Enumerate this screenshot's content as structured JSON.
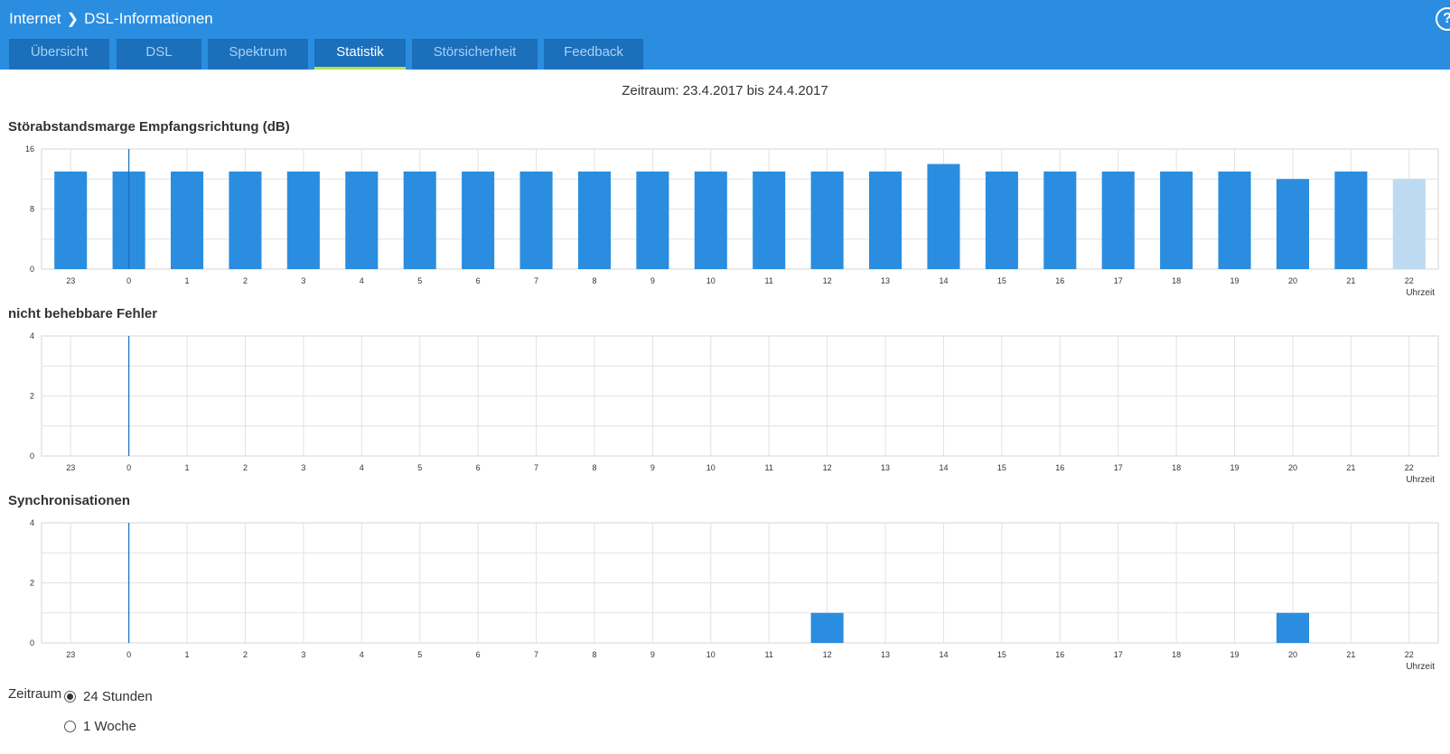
{
  "header": {
    "breadcrumb": [
      "Internet",
      "DSL-Informationen"
    ],
    "help_icon": "?"
  },
  "tabs": [
    {
      "label": "Übersicht"
    },
    {
      "label": "DSL"
    },
    {
      "label": "Spektrum"
    },
    {
      "label": "Statistik",
      "active": true
    },
    {
      "label": "Störsicherheit"
    },
    {
      "label": "Feedback"
    }
  ],
  "period_text": "Zeitraum: 23.4.2017 bis 24.4.2017",
  "chart_data": [
    {
      "type": "bar",
      "title": "Störabstandsmarge Empfangsrichtung (dB)",
      "xlabel": "Uhrzeit",
      "categories": [
        "23",
        "0",
        "1",
        "2",
        "3",
        "4",
        "5",
        "6",
        "7",
        "8",
        "9",
        "10",
        "11",
        "12",
        "13",
        "14",
        "15",
        "16",
        "17",
        "18",
        "19",
        "20",
        "21",
        "22"
      ],
      "values": [
        13,
        13,
        13,
        13,
        13,
        13,
        13,
        13,
        13,
        13,
        13,
        13,
        13,
        13,
        13,
        14,
        13,
        13,
        13,
        13,
        13,
        12,
        13,
        12
      ],
      "ylim": [
        0,
        16
      ],
      "yticks": [
        0,
        8,
        16
      ],
      "highlight_last": true,
      "color": "#2a8de0"
    },
    {
      "type": "bar",
      "title": "nicht behebbare Fehler",
      "xlabel": "Uhrzeit",
      "categories": [
        "23",
        "0",
        "1",
        "2",
        "3",
        "4",
        "5",
        "6",
        "7",
        "8",
        "9",
        "10",
        "11",
        "12",
        "13",
        "14",
        "15",
        "16",
        "17",
        "18",
        "19",
        "20",
        "21",
        "22"
      ],
      "values": [
        0,
        0,
        0,
        0,
        0,
        0,
        0,
        0,
        0,
        0,
        0,
        0,
        0,
        0,
        0,
        0,
        0,
        0,
        0,
        0,
        0,
        0,
        0,
        0
      ],
      "ylim": [
        0,
        4
      ],
      "yticks": [
        0,
        2,
        4
      ],
      "color": "#2a8de0"
    },
    {
      "type": "bar",
      "title": "Synchronisationen",
      "xlabel": "Uhrzeit",
      "categories": [
        "23",
        "0",
        "1",
        "2",
        "3",
        "4",
        "5",
        "6",
        "7",
        "8",
        "9",
        "10",
        "11",
        "12",
        "13",
        "14",
        "15",
        "16",
        "17",
        "18",
        "19",
        "20",
        "21",
        "22"
      ],
      "values": [
        0,
        0,
        0,
        0,
        0,
        0,
        0,
        0,
        0,
        0,
        0,
        0,
        0,
        1,
        0,
        0,
        0,
        0,
        0,
        0,
        0,
        1,
        0,
        0
      ],
      "ylim": [
        0,
        4
      ],
      "yticks": [
        0,
        2,
        4
      ],
      "color": "#2a8de0"
    }
  ],
  "zeitraum": {
    "label": "Zeitraum",
    "options": [
      {
        "label": "24 Stunden",
        "checked": true
      },
      {
        "label": "1 Woche",
        "checked": false
      }
    ]
  }
}
